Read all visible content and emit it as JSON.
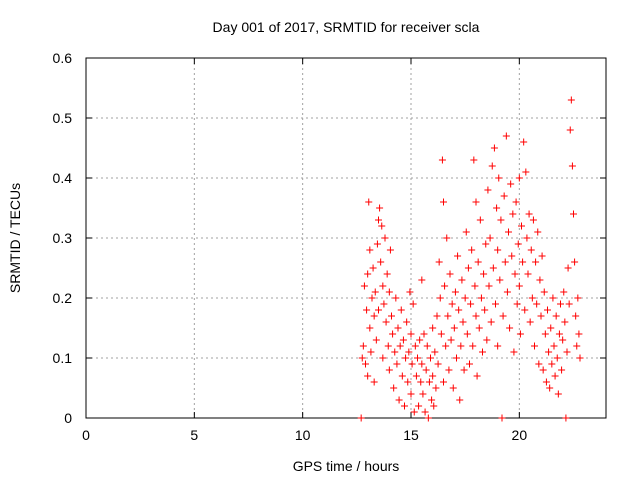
{
  "chart_data": {
    "type": "scatter",
    "title": "Day 001 of 2017, SRMTID for receiver scla",
    "xlabel": "GPS time / hours",
    "ylabel": "SRMTID / TECUs",
    "xlim": [
      0,
      24
    ],
    "ylim": [
      0,
      0.6
    ],
    "xticks": [
      "0",
      "5",
      "10",
      "15",
      "20"
    ],
    "xtick_values": [
      0,
      5,
      10,
      15,
      20
    ],
    "yticks": [
      "0",
      "0.1",
      "0.2",
      "0.3",
      "0.4",
      "0.5",
      "0.6"
    ],
    "ytick_values": [
      0,
      0.1,
      0.2,
      0.3,
      0.4,
      0.5,
      0.6
    ],
    "grid": true,
    "marker": "+",
    "series": [
      {
        "name": "SRMTID",
        "color": "#ff0000",
        "points": [
          [
            12.7,
            0.0
          ],
          [
            12.75,
            0.1
          ],
          [
            12.8,
            0.12
          ],
          [
            12.85,
            0.22
          ],
          [
            12.9,
            0.09
          ],
          [
            12.95,
            0.18
          ],
          [
            13.0,
            0.24
          ],
          [
            13.0,
            0.07
          ],
          [
            13.05,
            0.36
          ],
          [
            13.1,
            0.15
          ],
          [
            13.1,
            0.28
          ],
          [
            13.15,
            0.11
          ],
          [
            13.2,
            0.2
          ],
          [
            13.25,
            0.25
          ],
          [
            13.3,
            0.06
          ],
          [
            13.3,
            0.17
          ],
          [
            13.35,
            0.21
          ],
          [
            13.4,
            0.13
          ],
          [
            13.45,
            0.29
          ],
          [
            13.5,
            0.33
          ],
          [
            13.5,
            0.18
          ],
          [
            13.55,
            0.35
          ],
          [
            13.6,
            0.26
          ],
          [
            13.65,
            0.32
          ],
          [
            13.7,
            0.1
          ],
          [
            13.7,
            0.22
          ],
          [
            13.75,
            0.19
          ],
          [
            13.8,
            0.3
          ],
          [
            13.85,
            0.16
          ],
          [
            13.9,
            0.24
          ],
          [
            13.95,
            0.12
          ],
          [
            14.0,
            0.21
          ],
          [
            14.0,
            0.08
          ],
          [
            14.05,
            0.28
          ],
          [
            14.1,
            0.17
          ],
          [
            14.15,
            0.14
          ],
          [
            14.2,
            0.05
          ],
          [
            14.25,
            0.11
          ],
          [
            14.3,
            0.2
          ],
          [
            14.35,
            0.09
          ],
          [
            14.4,
            0.15
          ],
          [
            14.45,
            0.03
          ],
          [
            14.5,
            0.12
          ],
          [
            14.55,
            0.18
          ],
          [
            14.6,
            0.07
          ],
          [
            14.65,
            0.13
          ],
          [
            14.7,
            0.02
          ],
          [
            14.75,
            0.1
          ],
          [
            14.8,
            0.16
          ],
          [
            14.85,
            0.06
          ],
          [
            14.9,
            0.11
          ],
          [
            14.95,
            0.21
          ],
          [
            15.0,
            0.04
          ],
          [
            15.0,
            0.14
          ],
          [
            15.05,
            0.09
          ],
          [
            15.1,
            0.19
          ],
          [
            15.15,
            0.01
          ],
          [
            15.2,
            0.12
          ],
          [
            15.25,
            0.07
          ],
          [
            15.3,
            0.1
          ],
          [
            15.35,
            0.02
          ],
          [
            15.4,
            0.13
          ],
          [
            15.45,
            0.06
          ],
          [
            15.5,
            0.23
          ],
          [
            15.5,
            0.09
          ],
          [
            15.55,
            0.04
          ],
          [
            15.6,
            0.14
          ],
          [
            15.65,
            0.01
          ],
          [
            15.7,
            0.08
          ],
          [
            15.75,
            0.12
          ],
          [
            15.8,
            0.0
          ],
          [
            15.85,
            0.06
          ],
          [
            15.9,
            0.1
          ],
          [
            15.95,
            0.03
          ],
          [
            16.0,
            0.15
          ],
          [
            16.0,
            0.07
          ],
          [
            16.05,
            0.02
          ],
          [
            16.1,
            0.11
          ],
          [
            16.15,
            0.05
          ],
          [
            16.2,
            0.17
          ],
          [
            16.25,
            0.09
          ],
          [
            16.3,
            0.26
          ],
          [
            16.35,
            0.2
          ],
          [
            16.4,
            0.14
          ],
          [
            16.45,
            0.43
          ],
          [
            16.5,
            0.36
          ],
          [
            16.5,
            0.06
          ],
          [
            16.55,
            0.22
          ],
          [
            16.6,
            0.12
          ],
          [
            16.65,
            0.3
          ],
          [
            16.7,
            0.17
          ],
          [
            16.75,
            0.08
          ],
          [
            16.8,
            0.24
          ],
          [
            16.85,
            0.13
          ],
          [
            16.9,
            0.19
          ],
          [
            16.95,
            0.05
          ],
          [
            17.0,
            0.15
          ],
          [
            17.05,
            0.21
          ],
          [
            17.1,
            0.1
          ],
          [
            17.15,
            0.27
          ],
          [
            17.2,
            0.18
          ],
          [
            17.25,
            0.03
          ],
          [
            17.3,
            0.12
          ],
          [
            17.35,
            0.23
          ],
          [
            17.4,
            0.16
          ],
          [
            17.45,
            0.08
          ],
          [
            17.5,
            0.2
          ],
          [
            17.55,
            0.31
          ],
          [
            17.6,
            0.14
          ],
          [
            17.65,
            0.25
          ],
          [
            17.7,
            0.09
          ],
          [
            17.75,
            0.19
          ],
          [
            17.8,
            0.28
          ],
          [
            17.85,
            0.12
          ],
          [
            17.9,
            0.43
          ],
          [
            17.95,
            0.22
          ],
          [
            18.0,
            0.36
          ],
          [
            18.0,
            0.17
          ],
          [
            18.05,
            0.07
          ],
          [
            18.1,
            0.26
          ],
          [
            18.15,
            0.15
          ],
          [
            18.2,
            0.33
          ],
          [
            18.25,
            0.2
          ],
          [
            18.3,
            0.11
          ],
          [
            18.35,
            0.24
          ],
          [
            18.4,
            0.18
          ],
          [
            18.45,
            0.29
          ],
          [
            18.5,
            0.13
          ],
          [
            18.55,
            0.38
          ],
          [
            18.6,
            0.22
          ],
          [
            18.65,
            0.3
          ],
          [
            18.7,
            0.16
          ],
          [
            18.75,
            0.42
          ],
          [
            18.8,
            0.25
          ],
          [
            18.85,
            0.45
          ],
          [
            18.9,
            0.19
          ],
          [
            18.95,
            0.35
          ],
          [
            19.0,
            0.12
          ],
          [
            19.0,
            0.28
          ],
          [
            19.05,
            0.4
          ],
          [
            19.1,
            0.23
          ],
          [
            19.15,
            0.33
          ],
          [
            19.2,
            0.0
          ],
          [
            19.25,
            0.17
          ],
          [
            19.3,
            0.37
          ],
          [
            19.35,
            0.26
          ],
          [
            19.4,
            0.47
          ],
          [
            19.45,
            0.21
          ],
          [
            19.5,
            0.31
          ],
          [
            19.55,
            0.15
          ],
          [
            19.6,
            0.39
          ],
          [
            19.65,
            0.27
          ],
          [
            19.7,
            0.34
          ],
          [
            19.75,
            0.11
          ],
          [
            19.8,
            0.24
          ],
          [
            19.85,
            0.36
          ],
          [
            19.9,
            0.19
          ],
          [
            19.95,
            0.29
          ],
          [
            20.0,
            0.4
          ],
          [
            20.0,
            0.22
          ],
          [
            20.05,
            0.14
          ],
          [
            20.1,
            0.32
          ],
          [
            20.15,
            0.26
          ],
          [
            20.2,
            0.46
          ],
          [
            20.25,
            0.18
          ],
          [
            20.3,
            0.41
          ],
          [
            20.35,
            0.3
          ],
          [
            20.4,
            0.24
          ],
          [
            20.45,
            0.34
          ],
          [
            20.5,
            0.16
          ],
          [
            20.55,
            0.28
          ],
          [
            20.6,
            0.2
          ],
          [
            20.65,
            0.33
          ],
          [
            20.7,
            0.12
          ],
          [
            20.75,
            0.26
          ],
          [
            20.8,
            0.19
          ],
          [
            20.85,
            0.31
          ],
          [
            20.9,
            0.09
          ],
          [
            20.95,
            0.23
          ],
          [
            21.0,
            0.17
          ],
          [
            21.05,
            0.27
          ],
          [
            21.1,
            0.08
          ],
          [
            21.15,
            0.21
          ],
          [
            21.2,
            0.14
          ],
          [
            21.25,
            0.06
          ],
          [
            21.3,
            0.18
          ],
          [
            21.35,
            0.11
          ],
          [
            21.4,
            0.05
          ],
          [
            21.45,
            0.15
          ],
          [
            21.5,
            0.09
          ],
          [
            21.55,
            0.2
          ],
          [
            21.6,
            0.12
          ],
          [
            21.65,
            0.07
          ],
          [
            21.7,
            0.17
          ],
          [
            21.75,
            0.1
          ],
          [
            21.8,
            0.04
          ],
          [
            21.85,
            0.14
          ],
          [
            21.9,
            0.19
          ],
          [
            21.95,
            0.08
          ],
          [
            22.0,
            0.13
          ],
          [
            22.05,
            0.21
          ],
          [
            22.1,
            0.16
          ],
          [
            22.15,
            0.0
          ],
          [
            22.2,
            0.11
          ],
          [
            22.25,
            0.25
          ],
          [
            22.3,
            0.19
          ],
          [
            22.35,
            0.48
          ],
          [
            22.4,
            0.53
          ],
          [
            22.45,
            0.42
          ],
          [
            22.5,
            0.34
          ],
          [
            22.55,
            0.26
          ],
          [
            22.6,
            0.17
          ],
          [
            22.65,
            0.12
          ],
          [
            22.7,
            0.2
          ],
          [
            22.75,
            0.14
          ],
          [
            22.8,
            0.1
          ]
        ]
      }
    ]
  }
}
